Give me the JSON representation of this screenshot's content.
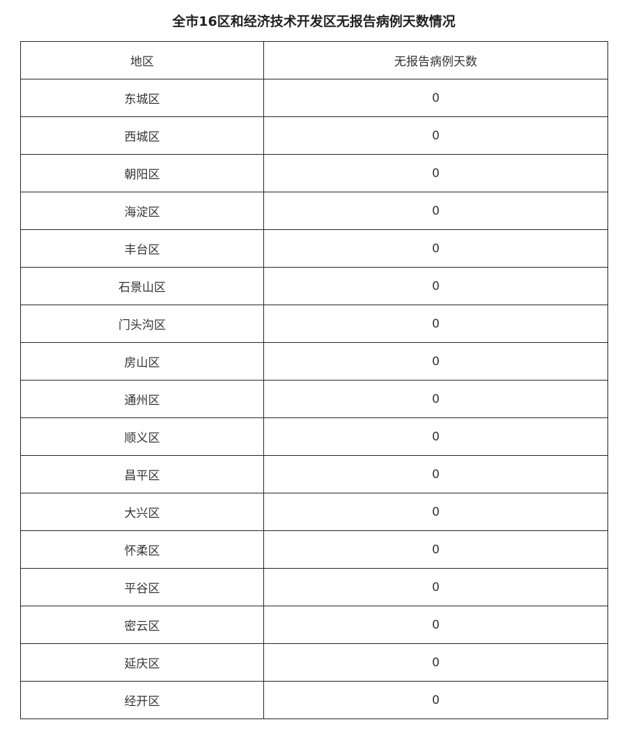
{
  "colors": {
    "background": "#ffffff",
    "border": "#222222",
    "cell_text": "#333333",
    "title_text": "#222222"
  },
  "chart_data": {
    "type": "table",
    "title": "全市16区和经济技术开发区无报告病例天数情况",
    "columns": [
      "地区",
      "无报告病例天数"
    ],
    "rows": [
      [
        "东城区",
        "0"
      ],
      [
        "西城区",
        "0"
      ],
      [
        "朝阳区",
        "0"
      ],
      [
        "海淀区",
        "0"
      ],
      [
        "丰台区",
        "0"
      ],
      [
        "石景山区",
        "0"
      ],
      [
        "门头沟区",
        "0"
      ],
      [
        "房山区",
        "0"
      ],
      [
        "通州区",
        "0"
      ],
      [
        "顺义区",
        "0"
      ],
      [
        "昌平区",
        "0"
      ],
      [
        "大兴区",
        "0"
      ],
      [
        "怀柔区",
        "0"
      ],
      [
        "平谷区",
        "0"
      ],
      [
        "密云区",
        "0"
      ],
      [
        "延庆区",
        "0"
      ],
      [
        "经开区",
        "0"
      ]
    ]
  }
}
